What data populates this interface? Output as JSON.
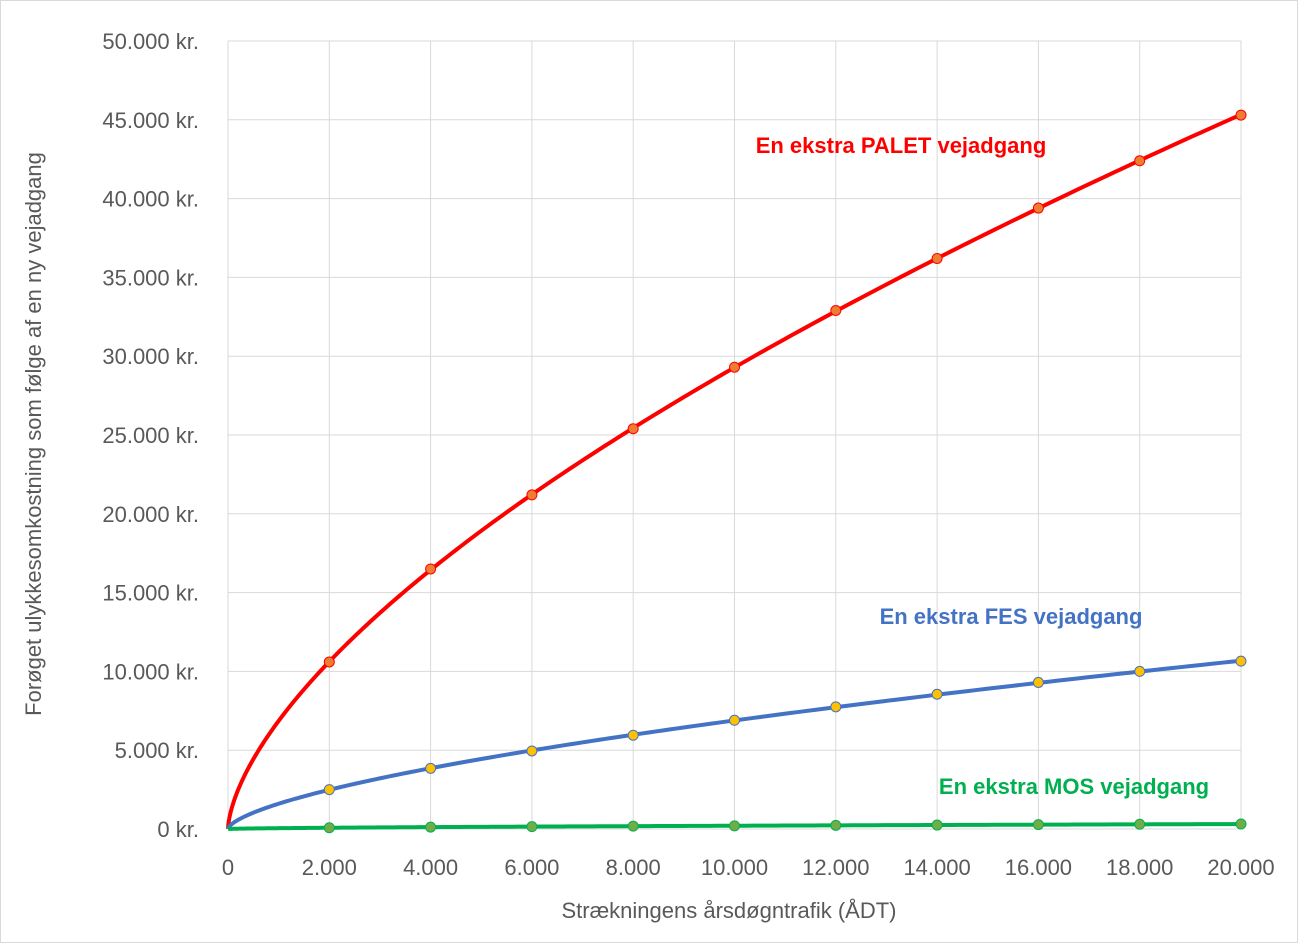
{
  "chart_data": {
    "type": "line",
    "xlabel": "Strækningens årsdøgntrafik (ÅDT)",
    "ylabel": "Forøget ulykkesomkostning som følge af en ny vejadgang",
    "xlim": [
      0,
      20000
    ],
    "ylim": [
      0,
      50000
    ],
    "x_ticks": [
      "0",
      "2.000",
      "4.000",
      "6.000",
      "8.000",
      "10.000",
      "12.000",
      "14.000",
      "16.000",
      "18.000",
      "20.000"
    ],
    "y_ticks": [
      "0 kr.",
      "5.000 kr.",
      "10.000 kr.",
      "15.000 kr.",
      "20.000 kr.",
      "25.000 kr.",
      "30.000 kr.",
      "35.000 kr.",
      "40.000 kr.",
      "45.000 kr.",
      "50.000 kr."
    ],
    "grid": true,
    "x": [
      2000,
      4000,
      6000,
      8000,
      10000,
      12000,
      14000,
      16000,
      18000,
      20000
    ],
    "series": [
      {
        "name": "En ekstra PALET vejadgang",
        "color": "#ff0000",
        "marker_color": "#ed7d31",
        "values": [
          10600,
          16500,
          21200,
          25400,
          29300,
          32900,
          36200,
          39400,
          42400,
          45300
        ]
      },
      {
        "name": "En ekstra FES vejadgang",
        "color": "#4472c4",
        "marker_color": "#ffc000",
        "values": [
          2500,
          3850,
          4950,
          5950,
          6900,
          7750,
          8550,
          9300,
          10000,
          10650
        ]
      },
      {
        "name": "En ekstra MOS vejadgang",
        "color": "#00b050",
        "marker_color": "#70ad47",
        "values": [
          80,
          120,
          150,
          180,
          200,
          230,
          250,
          280,
          300,
          320
        ]
      }
    ]
  }
}
